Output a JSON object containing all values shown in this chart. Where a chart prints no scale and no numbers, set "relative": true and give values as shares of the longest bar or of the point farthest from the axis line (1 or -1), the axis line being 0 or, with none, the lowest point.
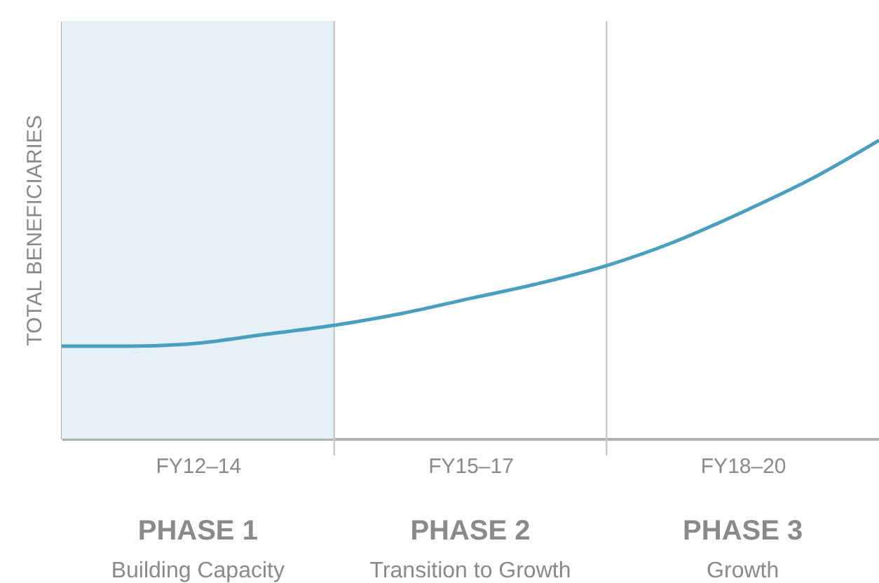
{
  "chart_data": {
    "type": "line",
    "relative": true,
    "ylabel": "TOTAL BENEFICIARIES",
    "tick_labels": "x",
    "marker": "none",
    "line_style": "solid",
    "categories": [
      null,
      null,
      "FY12–14",
      null,
      null,
      null,
      "FY15–17",
      null,
      null,
      null,
      "FY18–20",
      null,
      null
    ],
    "series": [
      {
        "color": "#4a9fbf",
        "values": [
          0.31,
          0.31,
          0.32,
          0.35,
          0.38,
          0.42,
          0.47,
          0.52,
          0.58,
          0.66,
          0.76,
          0.87,
          1.0
        ]
      }
    ],
    "annotations": [
      "PHASE 1",
      "Building Capacity",
      "PHASE 2",
      "Transition to Growth",
      "PHASE 3",
      "Growth"
    ]
  }
}
